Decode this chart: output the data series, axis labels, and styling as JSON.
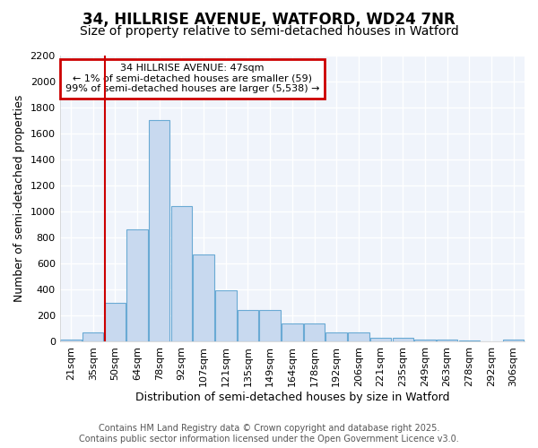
{
  "title1": "34, HILLRISE AVENUE, WATFORD, WD24 7NR",
  "title2": "Size of property relative to semi-detached houses in Watford",
  "xlabel": "Distribution of semi-detached houses by size in Watford",
  "ylabel": "Number of semi-detached properties",
  "categories": [
    "21sqm",
    "35sqm",
    "50sqm",
    "64sqm",
    "78sqm",
    "92sqm",
    "107sqm",
    "121sqm",
    "135sqm",
    "149sqm",
    "164sqm",
    "178sqm",
    "192sqm",
    "206sqm",
    "221sqm",
    "235sqm",
    "249sqm",
    "263sqm",
    "278sqm",
    "292sqm",
    "306sqm"
  ],
  "values": [
    15,
    70,
    300,
    860,
    1700,
    1040,
    670,
    395,
    245,
    245,
    140,
    140,
    75,
    75,
    30,
    30,
    18,
    15,
    8,
    4,
    15
  ],
  "bar_color": "#c8d9ef",
  "bar_edge_color": "#6aaad4",
  "vline_x_index": 2,
  "annotation_title": "34 HILLRISE AVENUE: 47sqm",
  "annotation_line1": "← 1% of semi-detached houses are smaller (59)",
  "annotation_line2": "99% of semi-detached houses are larger (5,538) →",
  "annotation_box_color": "#ffffff",
  "annotation_box_edge": "#cc0000",
  "vline_color": "#cc0000",
  "footer1": "Contains HM Land Registry data © Crown copyright and database right 2025.",
  "footer2": "Contains public sector information licensed under the Open Government Licence v3.0.",
  "ylim": [
    0,
    2200
  ],
  "yticks": [
    0,
    200,
    400,
    600,
    800,
    1000,
    1200,
    1400,
    1600,
    1800,
    2000,
    2200
  ],
  "bg_color": "#ffffff",
  "plot_bg_color": "#f0f4fb",
  "grid_color": "#ffffff",
  "title_fontsize": 12,
  "subtitle_fontsize": 10,
  "axis_label_fontsize": 9,
  "tick_fontsize": 8,
  "footer_fontsize": 7,
  "annotation_fontsize": 8
}
